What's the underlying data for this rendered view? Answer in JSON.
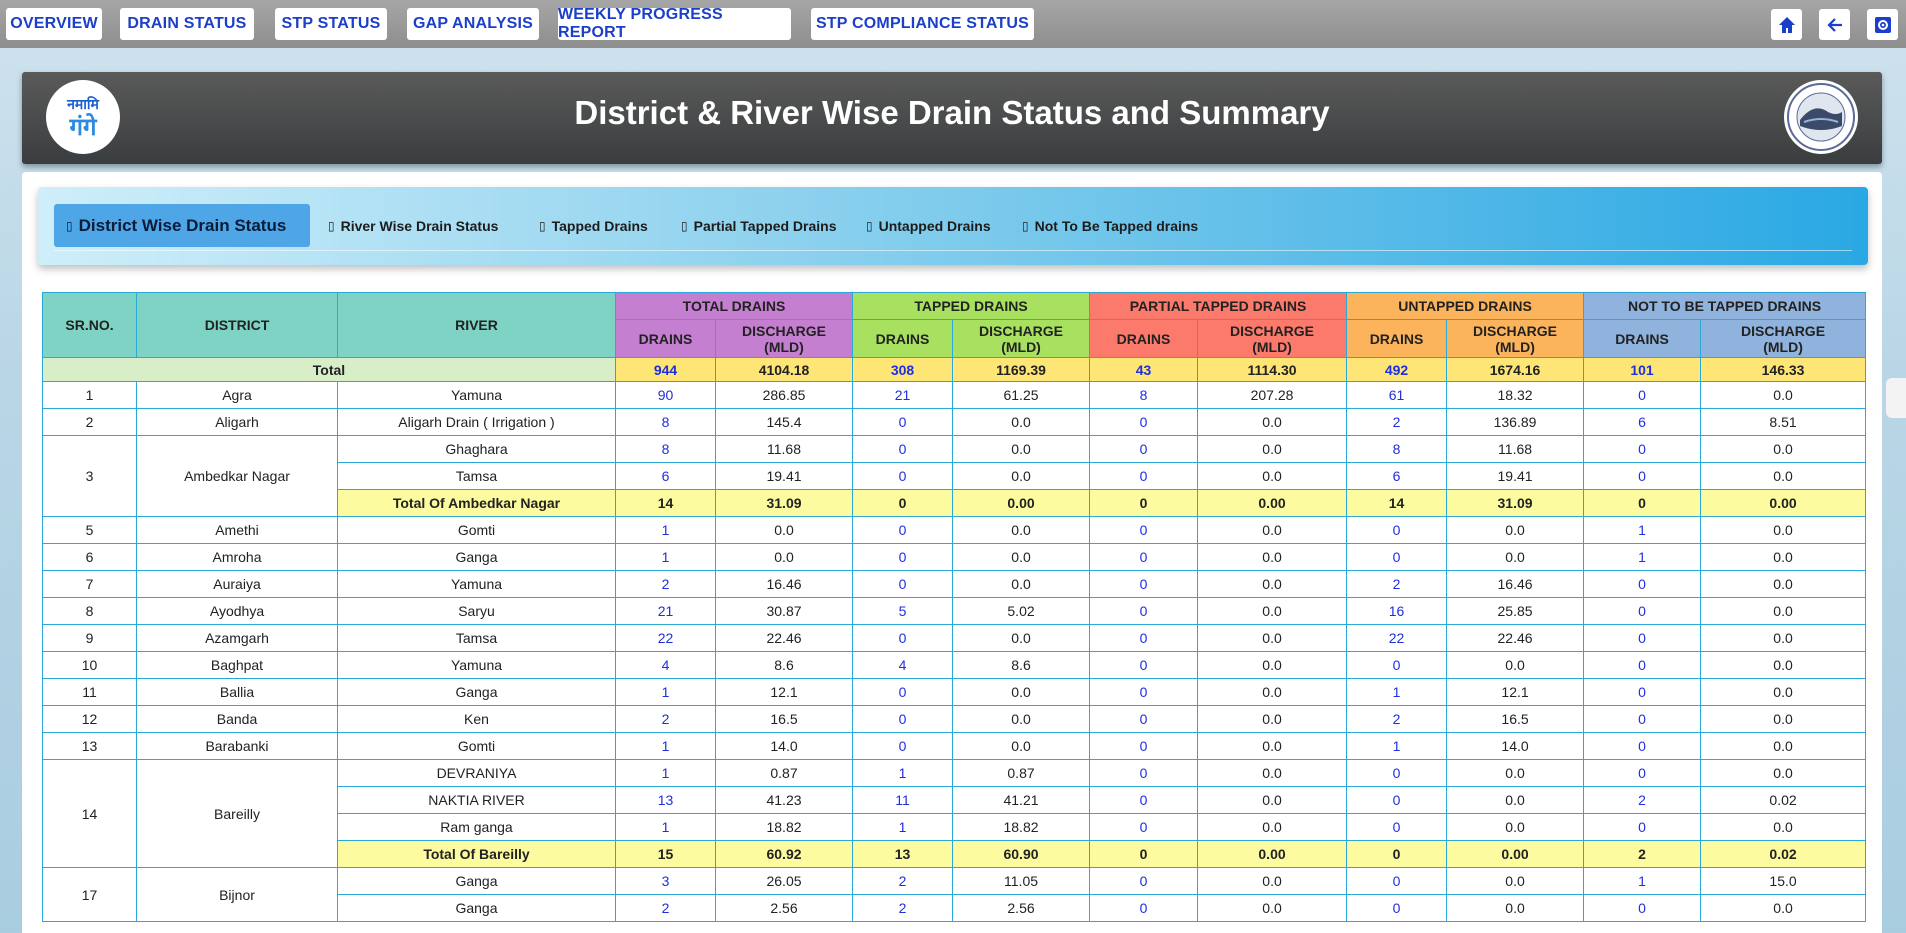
{
  "nav": {
    "items": [
      "OVERVIEW",
      "DRAIN STATUS",
      "STP STATUS",
      "GAP ANALYSIS",
      "WEEKLY PROGRESS REPORT",
      "STP COMPLIANCE STATUS"
    ],
    "icons": [
      "home-icon",
      "back-arrow-icon",
      "settings-icon"
    ]
  },
  "header": {
    "title": "District & River Wise Drain Status and Summary",
    "logo_left": "नमामि गंगे",
    "logo_right": "seal"
  },
  "tabs": [
    {
      "label": "District Wise Drain Status",
      "active": true
    },
    {
      "label": "River Wise Drain Status",
      "active": false
    },
    {
      "label": "Tapped Drains",
      "active": false
    },
    {
      "label": "Partial Tapped Drains",
      "active": false
    },
    {
      "label": "Untapped Drains",
      "active": false
    },
    {
      "label": "Not To Be Tapped drains",
      "active": false
    }
  ],
  "table": {
    "head": {
      "sr": "SR.NO.",
      "district": "DISTRICT",
      "river": "RIVER",
      "groups": [
        "TOTAL DRAINS",
        "TAPPED DRAINS",
        "PARTIAL TAPPED DRAINS",
        "UNTAPPED DRAINS",
        "NOT TO BE TAPPED DRAINS"
      ],
      "drains": "DRAINS",
      "discharge": "DISCHARGE",
      "mld": "(MLD)"
    },
    "total": {
      "label": "Total",
      "values": [
        "944",
        "4104.18",
        "308",
        "1169.39",
        "43",
        "1114.30",
        "492",
        "1674.16",
        "101",
        "146.33"
      ]
    },
    "rows": [
      {
        "sr": "1",
        "district": "Agra",
        "river": "Yamuna",
        "v": [
          "90",
          "286.85",
          "21",
          "61.25",
          "8",
          "207.28",
          "61",
          "18.32",
          "0",
          "0.0"
        ]
      },
      {
        "sr": "2",
        "district": "Aligarh",
        "river": "Aligarh Drain ( Irrigation )",
        "v": [
          "8",
          "145.4",
          "0",
          "0.0",
          "0",
          "0.0",
          "2",
          "136.89",
          "6",
          "8.51"
        ]
      },
      {
        "sr": "3",
        "district": "Ambedkar Nagar",
        "river": "Ghaghara",
        "v": [
          "8",
          "11.68",
          "0",
          "0.0",
          "0",
          "0.0",
          "8",
          "11.68",
          "0",
          "0.0"
        ]
      },
      {
        "sr": "",
        "district": "",
        "river": "Tamsa",
        "v": [
          "6",
          "19.41",
          "0",
          "0.0",
          "0",
          "0.0",
          "6",
          "19.41",
          "0",
          "0.0"
        ]
      },
      {
        "sr": "",
        "district": "",
        "river": "Total Of Ambedkar Nagar",
        "subtotal": true,
        "v": [
          "14",
          "31.09",
          "0",
          "0.00",
          "0",
          "0.00",
          "14",
          "31.09",
          "0",
          "0.00"
        ]
      },
      {
        "sr": "5",
        "district": "Amethi",
        "river": "Gomti",
        "v": [
          "1",
          "0.0",
          "0",
          "0.0",
          "0",
          "0.0",
          "0",
          "0.0",
          "1",
          "0.0"
        ]
      },
      {
        "sr": "6",
        "district": "Amroha",
        "river": "Ganga",
        "v": [
          "1",
          "0.0",
          "0",
          "0.0",
          "0",
          "0.0",
          "0",
          "0.0",
          "1",
          "0.0"
        ]
      },
      {
        "sr": "7",
        "district": "Auraiya",
        "river": "Yamuna",
        "v": [
          "2",
          "16.46",
          "0",
          "0.0",
          "0",
          "0.0",
          "2",
          "16.46",
          "0",
          "0.0"
        ]
      },
      {
        "sr": "8",
        "district": "Ayodhya",
        "river": "Saryu",
        "v": [
          "21",
          "30.87",
          "5",
          "5.02",
          "0",
          "0.0",
          "16",
          "25.85",
          "0",
          "0.0"
        ]
      },
      {
        "sr": "9",
        "district": "Azamgarh",
        "river": "Tamsa",
        "v": [
          "22",
          "22.46",
          "0",
          "0.0",
          "0",
          "0.0",
          "22",
          "22.46",
          "0",
          "0.0"
        ]
      },
      {
        "sr": "10",
        "district": "Baghpat",
        "river": "Yamuna",
        "v": [
          "4",
          "8.6",
          "4",
          "8.6",
          "0",
          "0.0",
          "0",
          "0.0",
          "0",
          "0.0"
        ]
      },
      {
        "sr": "11",
        "district": "Ballia",
        "river": "Ganga",
        "v": [
          "1",
          "12.1",
          "0",
          "0.0",
          "0",
          "0.0",
          "1",
          "12.1",
          "0",
          "0.0"
        ]
      },
      {
        "sr": "12",
        "district": "Banda",
        "river": "Ken",
        "v": [
          "2",
          "16.5",
          "0",
          "0.0",
          "0",
          "0.0",
          "2",
          "16.5",
          "0",
          "0.0"
        ]
      },
      {
        "sr": "13",
        "district": "Barabanki",
        "river": "Gomti",
        "v": [
          "1",
          "14.0",
          "0",
          "0.0",
          "0",
          "0.0",
          "1",
          "14.0",
          "0",
          "0.0"
        ]
      },
      {
        "sr": "14",
        "district": "Bareilly",
        "river": "DEVRANIYA",
        "v": [
          "1",
          "0.87",
          "1",
          "0.87",
          "0",
          "0.0",
          "0",
          "0.0",
          "0",
          "0.0"
        ]
      },
      {
        "sr": "",
        "district": "",
        "river": "NAKTIA RIVER",
        "v": [
          "13",
          "41.23",
          "11",
          "41.21",
          "0",
          "0.0",
          "0",
          "0.0",
          "2",
          "0.02"
        ]
      },
      {
        "sr": "",
        "district": "",
        "river": "Ram ganga",
        "v": [
          "1",
          "18.82",
          "1",
          "18.82",
          "0",
          "0.0",
          "0",
          "0.0",
          "0",
          "0.0"
        ]
      },
      {
        "sr": "",
        "district": "",
        "river": "Total Of Bareilly",
        "subtotal": true,
        "v": [
          "15",
          "60.92",
          "13",
          "60.90",
          "0",
          "0.00",
          "0",
          "0.00",
          "2",
          "0.02"
        ]
      },
      {
        "sr": "17",
        "district": "Bijnor",
        "river": "Ganga",
        "v": [
          "3",
          "26.05",
          "2",
          "11.05",
          "0",
          "0.0",
          "0",
          "0.0",
          "1",
          "15.0"
        ]
      },
      {
        "sr": "",
        "district": "",
        "river": "Ganga",
        "v": [
          "2",
          "2.56",
          "2",
          "2.56",
          "0",
          "0.0",
          "0",
          "0.0",
          "0",
          "0.0"
        ]
      }
    ]
  }
}
